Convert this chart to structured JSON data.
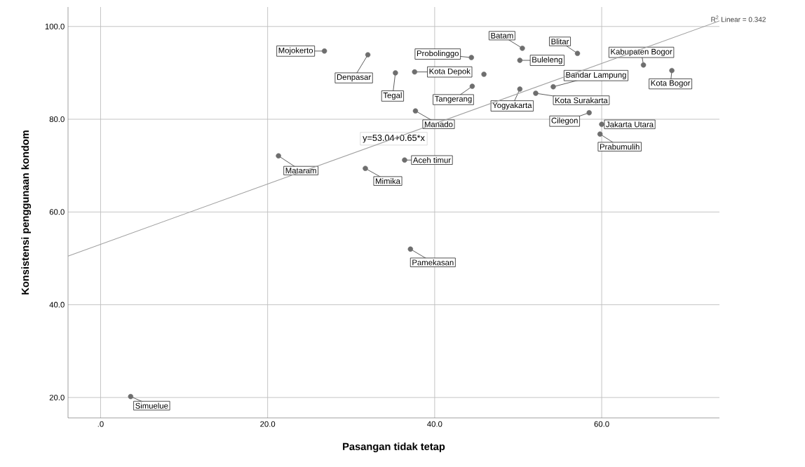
{
  "chart_data": {
    "type": "scatter",
    "xlabel": "Pasangan tidak tetap",
    "ylabel": "Konsistensi penggunaan kondom",
    "xlim": [
      -3.9,
      74.1
    ],
    "ylim": [
      15.6,
      104.2
    ],
    "xticks": [
      {
        "value": 0,
        "label": ".0"
      },
      {
        "value": 20,
        "label": "20.0"
      },
      {
        "value": 40,
        "label": "40.0"
      },
      {
        "value": 60,
        "label": "60.0"
      }
    ],
    "yticks": [
      {
        "value": 20,
        "label": "20.0"
      },
      {
        "value": 40,
        "label": "40.0"
      },
      {
        "value": 60,
        "label": "60.0"
      },
      {
        "value": 80,
        "label": "80.0"
      },
      {
        "value": 100,
        "label": "100.0"
      }
    ],
    "grid": true,
    "series": [
      {
        "color": "#6e6e6e",
        "marker": "circle",
        "x": [
          26.8,
          32.0,
          35.3,
          37.6,
          44.4,
          45.9,
          44.5,
          37.7,
          50.5,
          50.2,
          57.1,
          65.0,
          68.4,
          54.2,
          50.2,
          52.1,
          58.5,
          60.0,
          59.8,
          21.3,
          31.7,
          36.4,
          37.1,
          3.6
        ],
        "values": [
          94.7,
          93.9,
          90.0,
          90.2,
          93.3,
          89.7,
          87.1,
          81.8,
          95.3,
          92.7,
          94.2,
          91.7,
          90.5,
          87.0,
          86.5,
          85.6,
          81.4,
          78.9,
          76.8,
          72.1,
          69.4,
          71.2,
          52.0,
          20.2
        ]
      },
      {
        "type": "line",
        "name": "R$^{2}$ Linear = 0.342",
        "color": "#a0a0a0",
        "x": [
          -3.9,
          74.1
        ],
        "values": [
          50.5,
          101.2
        ],
        "line_style": "solid",
        "marker": "none"
      }
    ],
    "annotations": [
      {
        "text": "Mojokerto",
        "x": 26.8,
        "y": 94.7
      },
      {
        "text": "Denpasar",
        "x": 32.0,
        "y": 93.9
      },
      {
        "text": "Tegal",
        "x": 35.3,
        "y": 90.0
      },
      {
        "text": "Kota Depok",
        "x": 37.6,
        "y": 90.2
      },
      {
        "text": "Probolinggo",
        "x": 44.4,
        "y": 93.3
      },
      {
        "text": "Tangerang",
        "x": 44.5,
        "y": 87.1
      },
      {
        "text": "Manado",
        "x": 37.7,
        "y": 81.8
      },
      {
        "text": "Batam",
        "x": 50.5,
        "y": 95.3
      },
      {
        "text": "Buleleng",
        "x": 50.2,
        "y": 92.7
      },
      {
        "text": "Blitar",
        "x": 57.1,
        "y": 94.2
      },
      {
        "text": "Kabupaten Bogor",
        "x": 65.0,
        "y": 91.7
      },
      {
        "text": "Kota Bogor",
        "x": 68.4,
        "y": 90.5
      },
      {
        "text": "Bandar Lampung",
        "x": 54.2,
        "y": 87.0
      },
      {
        "text": "Yogyakarta",
        "x": 50.2,
        "y": 86.5
      },
      {
        "text": "Kota Surakarta",
        "x": 52.1,
        "y": 85.6
      },
      {
        "text": "Cilegon",
        "x": 58.5,
        "y": 81.4
      },
      {
        "text": "Jakarta Utara",
        "x": 60.0,
        "y": 78.9
      },
      {
        "text": "Prabumulih",
        "x": 59.8,
        "y": 76.8
      },
      {
        "text": "Mataram",
        "x": 21.3,
        "y": 72.1
      },
      {
        "text": "Mimika",
        "x": 31.7,
        "y": 69.4
      },
      {
        "text": "Aceh timur",
        "x": 36.4,
        "y": 71.2
      },
      {
        "text": "Pamekasan",
        "x": 37.1,
        "y": 52.0
      },
      {
        "text": "Simuelue",
        "x": 3.6,
        "y": 20.2
      },
      "y=53.04+0.65*x"
    ]
  }
}
